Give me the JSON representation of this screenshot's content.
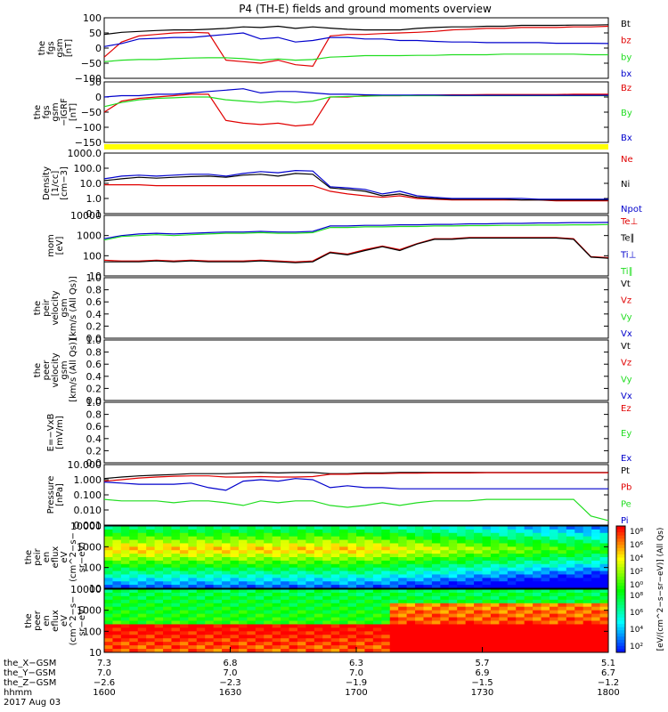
{
  "title": "P4 (TH-E) fields and ground moments overview",
  "colors": {
    "black": "#000000",
    "red": "#e00000",
    "green": "#20dd20",
    "blue": "#0000cc",
    "yellow": "#ffff00",
    "bg": "#ffffff"
  },
  "chart_data": [
    {
      "type": "line",
      "title": "",
      "ylabel": [
        "the",
        "fgs",
        "gsm",
        "[nT]"
      ],
      "yticks": [
        "100",
        "50",
        "0",
        "−50",
        "−100"
      ],
      "ylim": [
        -100,
        100
      ],
      "log": false,
      "series": [
        {
          "name": "Bt",
          "color": "black",
          "values": [
            45,
            52,
            55,
            58,
            60,
            60,
            62,
            65,
            70,
            68,
            72,
            65,
            70,
            66,
            62,
            60,
            60,
            60,
            65,
            68,
            70,
            70,
            72,
            72,
            75,
            75,
            75,
            76,
            76,
            77
          ]
        },
        {
          "name": "bz",
          "color": "red",
          "values": [
            -30,
            20,
            40,
            45,
            50,
            52,
            50,
            -40,
            -45,
            -50,
            -40,
            -55,
            -60,
            40,
            45,
            45,
            48,
            50,
            52,
            55,
            60,
            62,
            65,
            65,
            68,
            68,
            68,
            70,
            70,
            72
          ]
        },
        {
          "name": "by",
          "color": "green",
          "values": [
            -45,
            -40,
            -38,
            -38,
            -35,
            -33,
            -32,
            -32,
            -35,
            -40,
            -36,
            -40,
            -38,
            -30,
            -28,
            -25,
            -25,
            -25,
            -24,
            -24,
            -22,
            -22,
            -22,
            -20,
            -20,
            -20,
            -20,
            -20,
            -22,
            -22
          ]
        },
        {
          "name": "bx",
          "color": "blue",
          "values": [
            5,
            15,
            30,
            32,
            35,
            35,
            40,
            45,
            50,
            30,
            35,
            20,
            25,
            35,
            35,
            30,
            30,
            25,
            25,
            22,
            20,
            20,
            18,
            18,
            18,
            18,
            16,
            16,
            16,
            15
          ]
        }
      ]
    },
    {
      "type": "line",
      "title": "",
      "ylabel": [
        "the",
        "fgs",
        "gsm",
        "−IGRF",
        "[nT]"
      ],
      "yticks": [
        "50",
        "0",
        "−50",
        "−100",
        "−150"
      ],
      "ylim": [
        -170,
        50
      ],
      "log": false,
      "series": [
        {
          "name": "Bz",
          "color": "red",
          "values": [
            -60,
            -20,
            -10,
            -5,
            0,
            5,
            5,
            -90,
            -100,
            -105,
            -100,
            -110,
            -105,
            -5,
            -5,
            0,
            0,
            0,
            2,
            2,
            3,
            3,
            4,
            4,
            4,
            4,
            4,
            5,
            5,
            5
          ]
        },
        {
          "name": "By",
          "color": "green",
          "values": [
            -40,
            -25,
            -15,
            -10,
            -8,
            -5,
            -5,
            -15,
            -20,
            -25,
            -20,
            -25,
            -20,
            -5,
            -3,
            -2,
            0,
            0,
            0,
            0,
            0,
            0,
            0,
            0,
            0,
            0,
            0,
            0,
            0,
            0
          ]
        },
        {
          "name": "Bx",
          "color": "blue",
          "values": [
            -5,
            0,
            0,
            5,
            5,
            10,
            15,
            20,
            25,
            10,
            15,
            15,
            10,
            5,
            5,
            3,
            2,
            2,
            2,
            2,
            1,
            1,
            1,
            1,
            1,
            1,
            1,
            1,
            1,
            1
          ]
        }
      ]
    },
    {
      "type": "line",
      "title": "",
      "ylabel": [
        "Density",
        "[1/cc]",
        "[cm−3]"
      ],
      "yticks": [
        "1000.0",
        "100.0",
        "10.0",
        "1.0",
        "0.1"
      ],
      "ylim": [
        0.1,
        1000
      ],
      "log": true,
      "series": [
        {
          "name": "Ne",
          "color": "red",
          "values": [
            8,
            8,
            8,
            7,
            7,
            7,
            7,
            7,
            7,
            7,
            7,
            7,
            7,
            3,
            2,
            1.5,
            1.2,
            1.5,
            1,
            0.9,
            0.8,
            0.8,
            0.8,
            0.8,
            0.8,
            0.8,
            0.7,
            0.7,
            0.7,
            0.7
          ]
        },
        {
          "name": "Ni",
          "color": "black",
          "values": [
            15,
            20,
            25,
            22,
            25,
            28,
            30,
            25,
            35,
            40,
            30,
            45,
            40,
            5,
            4,
            3,
            1.5,
            2,
            1.2,
            1,
            0.9,
            0.9,
            0.9,
            0.9,
            0.8,
            0.8,
            0.8,
            0.8,
            0.8,
            0.8
          ]
        },
        {
          "name": "Npot",
          "color": "blue",
          "values": [
            20,
            30,
            35,
            30,
            35,
            40,
            40,
            30,
            45,
            60,
            50,
            70,
            65,
            6,
            5,
            4,
            2,
            3,
            1.5,
            1.2,
            1,
            1,
            1,
            1,
            1,
            0.9,
            0.9,
            0.9,
            0.9,
            0.9
          ]
        }
      ]
    },
    {
      "type": "line",
      "title": "",
      "ylabel": [
        "mom",
        "[eV]"
      ],
      "yticks": [
        "10000",
        "1000",
        "100",
        "10"
      ],
      "ylim": [
        10,
        10000
      ],
      "log": true,
      "series": [
        {
          "name": "Te⊥",
          "color": "red",
          "values": [
            60,
            55,
            55,
            60,
            55,
            60,
            55,
            55,
            55,
            60,
            55,
            50,
            55,
            150,
            120,
            200,
            300,
            200,
            400,
            700,
            700,
            800,
            800,
            800,
            800,
            800,
            800,
            700,
            90,
            80
          ]
        },
        {
          "name": "Te∥",
          "color": "black",
          "values": [
            50,
            50,
            50,
            55,
            50,
            55,
            50,
            50,
            50,
            55,
            50,
            45,
            50,
            140,
            110,
            180,
            280,
            180,
            380,
            650,
            650,
            750,
            750,
            750,
            750,
            750,
            750,
            650,
            85,
            75
          ]
        },
        {
          "name": "Ti⊥",
          "color": "blue",
          "values": [
            700,
            1000,
            1200,
            1300,
            1200,
            1300,
            1400,
            1500,
            1500,
            1600,
            1500,
            1500,
            1600,
            3000,
            3000,
            3200,
            3200,
            3400,
            3400,
            3600,
            3600,
            3800,
            3800,
            4000,
            4000,
            4200,
            4200,
            4400,
            4400,
            4500
          ]
        },
        {
          "name": "Ti∥",
          "color": "green",
          "values": [
            600,
            900,
            1000,
            1100,
            1000,
            1100,
            1200,
            1300,
            1300,
            1400,
            1300,
            1300,
            1400,
            2500,
            2500,
            2700,
            2700,
            2800,
            2800,
            3000,
            3000,
            3100,
            3100,
            3200,
            3200,
            3300,
            3300,
            3400,
            3400,
            3500
          ]
        }
      ]
    },
    {
      "type": "line",
      "title": "",
      "ylabel": [
        "the",
        "peir",
        "velocity",
        "gsm",
        "[km/s (All Qs)]"
      ],
      "yticks": [
        "1.0",
        "0.8",
        "0.6",
        "0.4",
        "0.2",
        "0.0"
      ],
      "ylim": [
        0,
        1
      ],
      "log": false,
      "series": [
        {
          "name": "Vt",
          "color": "black",
          "values": []
        },
        {
          "name": "Vz",
          "color": "red",
          "values": []
        },
        {
          "name": "Vy",
          "color": "green",
          "values": []
        },
        {
          "name": "Vx",
          "color": "blue",
          "values": []
        }
      ]
    },
    {
      "type": "line",
      "title": "",
      "ylabel": [
        "the",
        "peer",
        "velocity",
        "gsm",
        "[km/s (All Qs)]"
      ],
      "yticks": [
        "1.0",
        "0.8",
        "0.6",
        "0.4",
        "0.2",
        "0.0"
      ],
      "ylim": [
        0,
        1
      ],
      "log": false,
      "series": [
        {
          "name": "Vt",
          "color": "black",
          "values": []
        },
        {
          "name": "Vz",
          "color": "red",
          "values": []
        },
        {
          "name": "Vy",
          "color": "green",
          "values": []
        },
        {
          "name": "Vx",
          "color": "blue",
          "values": []
        }
      ]
    },
    {
      "type": "line",
      "title": "",
      "ylabel": [
        "E=−VxB",
        "[mV/m]"
      ],
      "yticks": [
        "1.0",
        "0.8",
        "0.6",
        "0.4",
        "0.2",
        "0.0"
      ],
      "ylim": [
        0,
        1
      ],
      "log": false,
      "series": [
        {
          "name": "Ez",
          "color": "red",
          "values": []
        },
        {
          "name": "Ey",
          "color": "green",
          "values": []
        },
        {
          "name": "Ex",
          "color": "blue",
          "values": []
        }
      ]
    },
    {
      "type": "line",
      "title": "",
      "ylabel": [
        "Pressure",
        "[nPa]"
      ],
      "yticks": [
        "10.000",
        "1.000",
        "0.100",
        "0.010",
        "0.001"
      ],
      "ylim": [
        0.001,
        10
      ],
      "log": true,
      "series": [
        {
          "name": "Pt",
          "color": "black",
          "values": [
            1.2,
            1.5,
            1.8,
            2,
            2.2,
            2.5,
            2.5,
            2.5,
            2.8,
            3,
            2.8,
            3,
            3,
            2.5,
            2.5,
            2.8,
            2.8,
            3,
            3,
            3,
            3,
            3,
            3,
            3,
            3,
            3,
            3,
            3,
            3,
            3
          ]
        },
        {
          "name": "Pb",
          "color": "red",
          "values": [
            0.8,
            1,
            1.3,
            1.5,
            1.7,
            1.8,
            1.8,
            1.5,
            1.5,
            1.6,
            1.5,
            1.5,
            1.6,
            2.3,
            2.3,
            2.5,
            2.5,
            2.7,
            2.7,
            2.8,
            2.8,
            2.8,
            2.9,
            2.9,
            2.9,
            2.9,
            2.9,
            2.9,
            2.9,
            2.9
          ]
        },
        {
          "name": "Pe",
          "color": "green",
          "values": [
            0.05,
            0.04,
            0.04,
            0.04,
            0.03,
            0.04,
            0.04,
            0.03,
            0.02,
            0.04,
            0.03,
            0.04,
            0.04,
            0.02,
            0.015,
            0.02,
            0.03,
            0.02,
            0.03,
            0.04,
            0.04,
            0.04,
            0.05,
            0.05,
            0.05,
            0.05,
            0.05,
            0.05,
            0.004,
            0.002
          ]
        },
        {
          "name": "Pi",
          "color": "blue",
          "values": [
            0.7,
            0.6,
            0.5,
            0.5,
            0.5,
            0.6,
            0.3,
            0.2,
            0.8,
            1,
            0.8,
            1.2,
            1,
            0.3,
            0.4,
            0.3,
            0.3,
            0.25,
            0.25,
            0.25,
            0.25,
            0.25,
            0.25,
            0.25,
            0.25,
            0.25,
            0.25,
            0.25,
            0.25,
            0.25
          ]
        }
      ]
    },
    {
      "type": "heatmap",
      "title": "",
      "ylabel": [
        "the",
        "peir",
        "en",
        "eflux",
        "eV",
        "(cm^2−s−",
        "sr−eV)"
      ],
      "yticks": [
        "10000",
        "1000",
        "100",
        "10"
      ],
      "ylim": [
        5,
        20000
      ],
      "log": true
    },
    {
      "type": "heatmap",
      "title": "",
      "ylabel": [
        "the",
        "peer",
        "en",
        "eflux",
        "eV",
        "(cm^2−s−",
        "sr−eV)"
      ],
      "yticks": [
        "10000",
        "1000",
        "100",
        "10"
      ],
      "ylim": [
        5,
        20000
      ],
      "log": true
    }
  ],
  "colorbar": {
    "label": "[eV/(cm^2−s−sr−eV)] (All Qs)",
    "ticks_top": [
      "10⁸",
      "10⁶",
      "10⁴",
      "10²",
      "10⁰"
    ],
    "ticks_bottom": [
      "10⁸",
      "10⁶",
      "10⁴",
      "10²"
    ]
  },
  "xaxis": {
    "tick_hhmm": [
      "1600",
      "1630",
      "1700",
      "1730",
      "1800"
    ],
    "rows": [
      {
        "label": "the_X−GSM",
        "values": [
          "7.3",
          "6.8",
          "6.3",
          "5.7",
          "5.1"
        ]
      },
      {
        "label": "the_Y−GSM",
        "values": [
          "7.0",
          "7.0",
          "7.0",
          "6.9",
          "6.7"
        ]
      },
      {
        "label": "the_Z−GSM",
        "values": [
          "−2.6",
          "−2.3",
          "−1.9",
          "−1.5",
          "−1.2"
        ]
      },
      {
        "label": "hhmm",
        "values": [
          "1600",
          "1630",
          "1700",
          "1730",
          "1800"
        ]
      }
    ],
    "date": "2017 Aug 03"
  }
}
